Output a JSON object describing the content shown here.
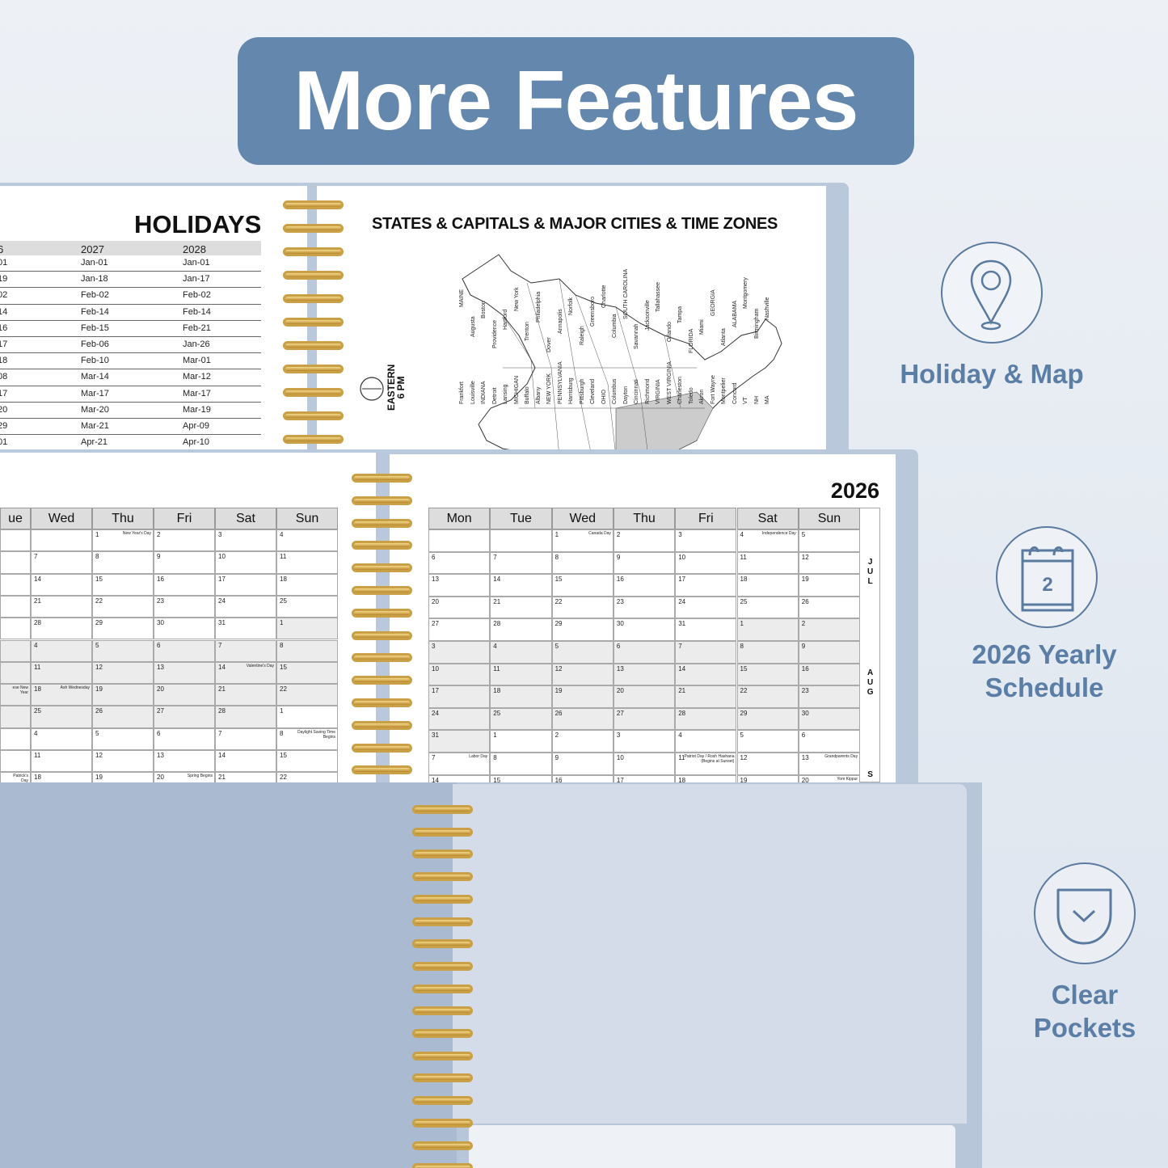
{
  "banner": {
    "title": "More Features"
  },
  "holidays": {
    "title": "HOLIDAYS",
    "headers": [
      "6",
      "2027",
      "2028"
    ],
    "rows": [
      [
        "01",
        "Jan-01",
        "Jan-01"
      ],
      [
        "19",
        "Jan-18",
        "Jan-17"
      ],
      [
        "02",
        "Feb-02",
        "Feb-02"
      ],
      [
        "14",
        "Feb-14",
        "Feb-14"
      ],
      [
        "16",
        "Feb-15",
        "Feb-21"
      ],
      [
        "17",
        "Feb-06",
        "Jan-26"
      ],
      [
        "18",
        "Feb-10",
        "Mar-01"
      ],
      [
        "08",
        "Mar-14",
        "Mar-12"
      ],
      [
        "17",
        "Mar-17",
        "Mar-17"
      ],
      [
        "20",
        "Mar-20",
        "Mar-19"
      ],
      [
        "29",
        "Mar-21",
        "Apr-09"
      ],
      [
        "01",
        "Apr-21",
        "Apr-10"
      ]
    ]
  },
  "map": {
    "title": "STATES & CAPITALS & MAJOR CITIES & TIME ZONES",
    "timezone_line1": "EASTERN",
    "timezone_line2": "6 PM",
    "labels": [
      "MAINE",
      "Augusta",
      "Boston",
      "Providence",
      "Hartford",
      "New York",
      "Trenton",
      "Philadelphia",
      "Dover",
      "Annapolis",
      "Norfolk",
      "Raleigh",
      "Greensboro",
      "Charlotte",
      "Columbia",
      "SOUTH CAROLINA",
      "Savannah",
      "Jacksonville",
      "Tallahassee",
      "Orlando",
      "Tampa",
      "FLORIDA",
      "Miami",
      "GEORGIA",
      "Atlanta",
      "ALABAMA",
      "Montgomery",
      "Birmingham",
      "Nashville",
      "Frankfort",
      "Louisville",
      "INDIANA",
      "Detroit",
      "Lansing",
      "MICHIGAN",
      "Buffalo",
      "Albany",
      "NEW YORK",
      "PENNSYLVANIA",
      "Harrisburg",
      "Pittsburgh",
      "Cleveland",
      "OHIO",
      "Columbus",
      "Dayton",
      "Cincinnati",
      "Richmond",
      "VIRGINIA",
      "WEST VIRGINIA",
      "Charleston",
      "Toledo",
      "Akron",
      "Fort Wayne",
      "Montpelier",
      "Concord",
      "VT",
      "NH",
      "MA"
    ]
  },
  "calendar_left": {
    "headers": [
      "ue",
      "Wed",
      "Thu",
      "Fri",
      "Sat",
      "Sun"
    ],
    "rows": [
      [
        {
          "d": ""
        },
        {
          "d": ""
        },
        {
          "d": "1",
          "n": "New Year's Day"
        },
        {
          "d": "2"
        },
        {
          "d": "3"
        },
        {
          "d": "4"
        }
      ],
      [
        {
          "d": ""
        },
        {
          "d": "7"
        },
        {
          "d": "8"
        },
        {
          "d": "9"
        },
        {
          "d": "10"
        },
        {
          "d": "11"
        }
      ],
      [
        {
          "d": ""
        },
        {
          "d": "14"
        },
        {
          "d": "15"
        },
        {
          "d": "16"
        },
        {
          "d": "17"
        },
        {
          "d": "18"
        }
      ],
      [
        {
          "d": ""
        },
        {
          "d": "21"
        },
        {
          "d": "22"
        },
        {
          "d": "23"
        },
        {
          "d": "24"
        },
        {
          "d": "25"
        }
      ],
      [
        {
          "d": ""
        },
        {
          "d": "28"
        },
        {
          "d": "29"
        },
        {
          "d": "30"
        },
        {
          "d": "31"
        },
        {
          "d": "1",
          "s": true
        }
      ],
      [
        {
          "d": "",
          "s": true
        },
        {
          "d": "4",
          "s": true
        },
        {
          "d": "5",
          "s": true
        },
        {
          "d": "6",
          "s": true
        },
        {
          "d": "7",
          "s": true
        },
        {
          "d": "8",
          "s": true
        }
      ],
      [
        {
          "d": "",
          "s": true
        },
        {
          "d": "11",
          "s": true
        },
        {
          "d": "12",
          "s": true
        },
        {
          "d": "13",
          "s": true
        },
        {
          "d": "14",
          "n": "Valentine's Day",
          "s": true
        },
        {
          "d": "15",
          "s": true
        }
      ],
      [
        {
          "d": "",
          "n": "ese New Year",
          "s": true
        },
        {
          "d": "18",
          "n": "Ash Wednesday",
          "s": true
        },
        {
          "d": "19",
          "s": true
        },
        {
          "d": "20",
          "s": true
        },
        {
          "d": "21",
          "s": true
        },
        {
          "d": "22",
          "s": true
        }
      ],
      [
        {
          "d": "",
          "s": true
        },
        {
          "d": "25",
          "s": true
        },
        {
          "d": "26",
          "s": true
        },
        {
          "d": "27",
          "s": true
        },
        {
          "d": "28",
          "s": true
        },
        {
          "d": "1"
        }
      ],
      [
        {
          "d": ""
        },
        {
          "d": "4"
        },
        {
          "d": "5"
        },
        {
          "d": "6"
        },
        {
          "d": "7"
        },
        {
          "d": "8",
          "n": "Daylight Saving Time Begins"
        }
      ],
      [
        {
          "d": ""
        },
        {
          "d": "11"
        },
        {
          "d": "12"
        },
        {
          "d": "13"
        },
        {
          "d": "14"
        },
        {
          "d": "15"
        }
      ],
      [
        {
          "d": "",
          "n": "Patrick's Day"
        },
        {
          "d": "18"
        },
        {
          "d": "19"
        },
        {
          "d": "20",
          "n": "Spring Begins"
        },
        {
          "d": "21"
        },
        {
          "d": "22"
        }
      ]
    ]
  },
  "calendar_right": {
    "year": "2026",
    "headers": [
      "Mon",
      "Tue",
      "Wed",
      "Thu",
      "Fri",
      "Sat",
      "Sun"
    ],
    "months": [
      "JUL",
      "AUG",
      "S"
    ],
    "rows": [
      [
        {
          "d": ""
        },
        {
          "d": ""
        },
        {
          "d": "1",
          "n": "Canada Day"
        },
        {
          "d": "2"
        },
        {
          "d": "3"
        },
        {
          "d": "4",
          "n": "Independence Day"
        },
        {
          "d": "5"
        }
      ],
      [
        {
          "d": "6"
        },
        {
          "d": "7"
        },
        {
          "d": "8"
        },
        {
          "d": "9"
        },
        {
          "d": "10"
        },
        {
          "d": "11"
        },
        {
          "d": "12"
        }
      ],
      [
        {
          "d": "13"
        },
        {
          "d": "14"
        },
        {
          "d": "15"
        },
        {
          "d": "16"
        },
        {
          "d": "17"
        },
        {
          "d": "18"
        },
        {
          "d": "19"
        }
      ],
      [
        {
          "d": "20"
        },
        {
          "d": "21"
        },
        {
          "d": "22"
        },
        {
          "d": "23"
        },
        {
          "d": "24"
        },
        {
          "d": "25"
        },
        {
          "d": "26"
        }
      ],
      [
        {
          "d": "27"
        },
        {
          "d": "28"
        },
        {
          "d": "29"
        },
        {
          "d": "30"
        },
        {
          "d": "31"
        },
        {
          "d": "1",
          "s": true
        },
        {
          "d": "2",
          "s": true
        }
      ],
      [
        {
          "d": "3",
          "s": true
        },
        {
          "d": "4",
          "s": true
        },
        {
          "d": "5",
          "s": true
        },
        {
          "d": "6",
          "s": true
        },
        {
          "d": "7",
          "s": true
        },
        {
          "d": "8",
          "s": true
        },
        {
          "d": "9",
          "s": true
        }
      ],
      [
        {
          "d": "10",
          "s": true
        },
        {
          "d": "11",
          "s": true
        },
        {
          "d": "12",
          "s": true
        },
        {
          "d": "13",
          "s": true
        },
        {
          "d": "14",
          "s": true
        },
        {
          "d": "15",
          "s": true
        },
        {
          "d": "16",
          "s": true
        }
      ],
      [
        {
          "d": "17",
          "s": true
        },
        {
          "d": "18",
          "s": true
        },
        {
          "d": "19",
          "s": true
        },
        {
          "d": "20",
          "s": true
        },
        {
          "d": "21",
          "s": true
        },
        {
          "d": "22",
          "s": true
        },
        {
          "d": "23",
          "s": true
        }
      ],
      [
        {
          "d": "24",
          "s": true
        },
        {
          "d": "25",
          "s": true
        },
        {
          "d": "26",
          "s": true
        },
        {
          "d": "27",
          "s": true
        },
        {
          "d": "28",
          "s": true
        },
        {
          "d": "29",
          "s": true
        },
        {
          "d": "30",
          "s": true
        }
      ],
      [
        {
          "d": "31",
          "s": true
        },
        {
          "d": "1"
        },
        {
          "d": "2"
        },
        {
          "d": "3"
        },
        {
          "d": "4"
        },
        {
          "d": "5"
        },
        {
          "d": "6"
        }
      ],
      [
        {
          "d": "7",
          "n": "Labor Day"
        },
        {
          "d": "8"
        },
        {
          "d": "9"
        },
        {
          "d": "10"
        },
        {
          "d": "11",
          "n": "Patriot Day / Rosh Hashana (Begins at Sunset)"
        },
        {
          "d": "12"
        },
        {
          "d": "13",
          "n": "Grandparents Day"
        }
      ],
      [
        {
          "d": "14"
        },
        {
          "d": "15"
        },
        {
          "d": "16"
        },
        {
          "d": "17"
        },
        {
          "d": "18"
        },
        {
          "d": "19"
        },
        {
          "d": "20",
          "n": "Yom Kippur"
        }
      ]
    ]
  },
  "features": [
    {
      "label_line1": "Holiday & Map",
      "label_line2": "",
      "icon": "map-pin-icon"
    },
    {
      "label_line1": "2026 Yearly",
      "label_line2": "Schedule",
      "icon": "calendar-icon",
      "icon_text": "2"
    },
    {
      "label_line1": "Clear",
      "label_line2": "Pockets",
      "icon": "pocket-icon"
    }
  ],
  "colors": {
    "banner": "#6487ad",
    "feature_text": "#5a7ea6",
    "cover": "#a9bad1",
    "pocket": "#d3dce8",
    "spiral": "#c9a045"
  }
}
